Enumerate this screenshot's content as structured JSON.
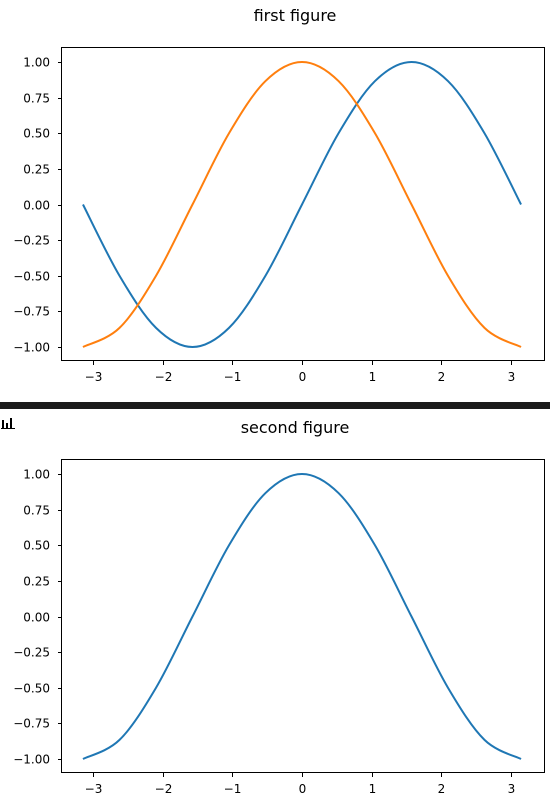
{
  "chart_data": [
    {
      "type": "line",
      "title": "first figure",
      "xlabel": "",
      "ylabel": "",
      "xlim": [
        -3.14159,
        3.14159
      ],
      "ylim": [
        -1.0,
        1.0
      ],
      "xticks": [
        -3,
        -2,
        -1,
        0,
        1,
        2,
        3
      ],
      "xtick_labels": [
        "−3",
        "−2",
        "−1",
        "0",
        "1",
        "2",
        "3"
      ],
      "yticks": [
        1.0,
        0.75,
        0.5,
        0.25,
        0.0,
        -0.25,
        -0.5,
        -0.75,
        -1.0
      ],
      "ytick_labels": [
        "1.00",
        "0.75",
        "0.50",
        "0.25",
        "0.00",
        "−0.25",
        "−0.50",
        "−0.75",
        "−1.00"
      ],
      "grid": false,
      "series": [
        {
          "color": "#1f77b4",
          "x": [
            -3.142,
            -2.618,
            -2.094,
            -1.571,
            -1.047,
            -0.524,
            0.0,
            0.524,
            1.047,
            1.571,
            2.094,
            2.618,
            3.142
          ],
          "y": [
            0.0,
            -0.5,
            -0.866,
            -1.0,
            -0.866,
            -0.5,
            0.0,
            0.5,
            0.866,
            1.0,
            0.866,
            0.5,
            0.0
          ]
        },
        {
          "color": "#ff7f0e",
          "x": [
            -3.142,
            -2.618,
            -2.094,
            -1.571,
            -1.047,
            -0.524,
            0.0,
            0.524,
            1.047,
            1.571,
            2.094,
            2.618,
            3.142
          ],
          "y": [
            -1.0,
            -0.866,
            -0.5,
            0.0,
            0.5,
            0.866,
            1.0,
            0.866,
            0.5,
            0.0,
            -0.5,
            -0.866,
            -1.0
          ]
        }
      ]
    },
    {
      "type": "line",
      "title": "second figure",
      "xlabel": "",
      "ylabel": "",
      "xlim": [
        -3.14159,
        3.14159
      ],
      "ylim": [
        -1.0,
        1.0
      ],
      "xticks": [
        -3,
        -2,
        -1,
        0,
        1,
        2,
        3
      ],
      "xtick_labels": [
        "−3",
        "−2",
        "−1",
        "0",
        "1",
        "2",
        "3"
      ],
      "yticks": [
        1.0,
        0.75,
        0.5,
        0.25,
        0.0,
        -0.25,
        -0.5,
        -0.75,
        -1.0
      ],
      "ytick_labels": [
        "1.00",
        "0.75",
        "0.50",
        "0.25",
        "0.00",
        "−0.25",
        "−0.50",
        "−0.75",
        "−1.00"
      ],
      "grid": false,
      "series": [
        {
          "color": "#1f77b4",
          "x": [
            -3.142,
            -2.618,
            -2.094,
            -1.571,
            -1.047,
            -0.524,
            0.0,
            0.524,
            1.047,
            1.571,
            2.094,
            2.618,
            3.142
          ],
          "y": [
            -1.0,
            -0.866,
            -0.5,
            0.0,
            0.5,
            0.866,
            1.0,
            0.866,
            0.5,
            0.0,
            -0.5,
            -0.866,
            -1.0
          ]
        }
      ]
    }
  ],
  "toolbar": {
    "icon": "bar-chart-icon"
  }
}
